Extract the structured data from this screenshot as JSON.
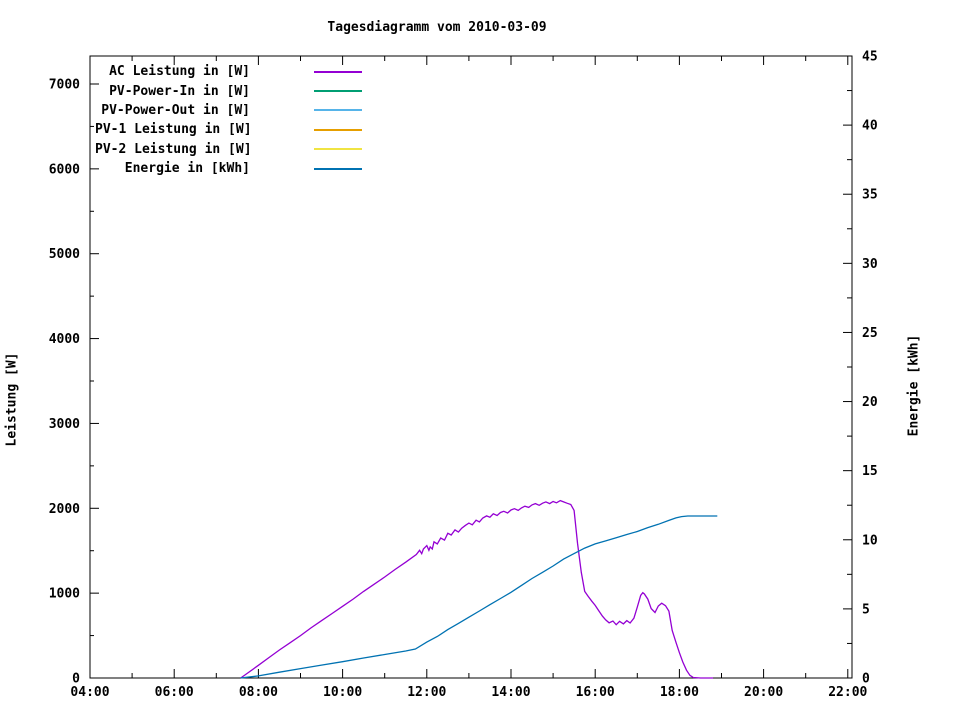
{
  "chart_data": {
    "type": "line",
    "title": "Tagesdiagramm vom 2010-03-09",
    "grid": false,
    "legend_position": "top-left-inside",
    "x_axis": {
      "min": 4,
      "max": 22.1,
      "major_step": 2,
      "minor_step": 1,
      "labels": [
        "04:00",
        "06:00",
        "08:00",
        "10:00",
        "12:00",
        "14:00",
        "16:00",
        "18:00",
        "20:00",
        "22:00"
      ]
    },
    "y_left": {
      "label": "Leistung [W]",
      "min": 0,
      "max": 7000,
      "major_step": 1000,
      "minor_step": 500
    },
    "y_right": {
      "label": "Energie [kWh]",
      "min": 0,
      "max": 45,
      "major_step": 5,
      "minor_step": 2.5
    },
    "series": [
      {
        "name": "AC Leistung in [W]",
        "color": "#9400d3",
        "axis": "left",
        "points": [
          [
            7.58,
            0
          ],
          [
            7.75,
            60
          ],
          [
            8.0,
            150
          ],
          [
            8.25,
            240
          ],
          [
            8.5,
            330
          ],
          [
            8.75,
            415
          ],
          [
            9.0,
            500
          ],
          [
            9.25,
            590
          ],
          [
            9.5,
            675
          ],
          [
            9.75,
            760
          ],
          [
            10.0,
            845
          ],
          [
            10.25,
            930
          ],
          [
            10.5,
            1020
          ],
          [
            10.75,
            1105
          ],
          [
            11.0,
            1190
          ],
          [
            11.25,
            1280
          ],
          [
            11.5,
            1365
          ],
          [
            11.75,
            1455
          ],
          [
            11.83,
            1505
          ],
          [
            11.88,
            1465
          ],
          [
            11.92,
            1520
          ],
          [
            12.0,
            1560
          ],
          [
            12.05,
            1505
          ],
          [
            12.08,
            1545
          ],
          [
            12.13,
            1520
          ],
          [
            12.17,
            1605
          ],
          [
            12.25,
            1580
          ],
          [
            12.33,
            1650
          ],
          [
            12.42,
            1625
          ],
          [
            12.5,
            1705
          ],
          [
            12.58,
            1685
          ],
          [
            12.67,
            1745
          ],
          [
            12.75,
            1720
          ],
          [
            12.83,
            1765
          ],
          [
            12.92,
            1800
          ],
          [
            13.0,
            1825
          ],
          [
            13.08,
            1805
          ],
          [
            13.17,
            1860
          ],
          [
            13.25,
            1840
          ],
          [
            13.33,
            1885
          ],
          [
            13.42,
            1910
          ],
          [
            13.5,
            1895
          ],
          [
            13.58,
            1935
          ],
          [
            13.67,
            1915
          ],
          [
            13.75,
            1950
          ],
          [
            13.83,
            1965
          ],
          [
            13.92,
            1945
          ],
          [
            14.0,
            1980
          ],
          [
            14.08,
            1995
          ],
          [
            14.17,
            1975
          ],
          [
            14.25,
            2005
          ],
          [
            14.33,
            2025
          ],
          [
            14.42,
            2010
          ],
          [
            14.5,
            2040
          ],
          [
            14.58,
            2055
          ],
          [
            14.67,
            2035
          ],
          [
            14.75,
            2060
          ],
          [
            14.83,
            2075
          ],
          [
            14.92,
            2055
          ],
          [
            15.0,
            2080
          ],
          [
            15.08,
            2065
          ],
          [
            15.17,
            2090
          ],
          [
            15.25,
            2075
          ],
          [
            15.33,
            2060
          ],
          [
            15.42,
            2045
          ],
          [
            15.5,
            1975
          ],
          [
            15.58,
            1590
          ],
          [
            15.67,
            1245
          ],
          [
            15.75,
            1020
          ],
          [
            15.83,
            965
          ],
          [
            15.92,
            905
          ],
          [
            16.0,
            855
          ],
          [
            16.08,
            795
          ],
          [
            16.17,
            730
          ],
          [
            16.25,
            685
          ],
          [
            16.33,
            650
          ],
          [
            16.42,
            672
          ],
          [
            16.5,
            628
          ],
          [
            16.58,
            668
          ],
          [
            16.67,
            638
          ],
          [
            16.75,
            676
          ],
          [
            16.83,
            648
          ],
          [
            16.92,
            705
          ],
          [
            17.0,
            835
          ],
          [
            17.08,
            975
          ],
          [
            17.13,
            1005
          ],
          [
            17.17,
            990
          ],
          [
            17.25,
            930
          ],
          [
            17.33,
            818
          ],
          [
            17.42,
            772
          ],
          [
            17.5,
            848
          ],
          [
            17.58,
            882
          ],
          [
            17.67,
            852
          ],
          [
            17.75,
            788
          ],
          [
            17.83,
            560
          ],
          [
            17.92,
            420
          ],
          [
            18.0,
            298
          ],
          [
            18.08,
            188
          ],
          [
            18.17,
            92
          ],
          [
            18.25,
            32
          ],
          [
            18.33,
            6
          ],
          [
            18.5,
            0
          ],
          [
            18.8,
            0
          ]
        ]
      },
      {
        "name": "PV-Power-In in [W]",
        "color": "#009e73",
        "axis": "left",
        "points": []
      },
      {
        "name": "PV-Power-Out in [W]",
        "color": "#56b4e9",
        "axis": "left",
        "points": []
      },
      {
        "name": "PV-1 Leistung in [W]",
        "color": "#e69f00",
        "axis": "left",
        "points": []
      },
      {
        "name": "PV-2 Leistung in [W]",
        "color": "#f0e442",
        "axis": "left",
        "points": []
      },
      {
        "name": "Energie in [kWh]",
        "color": "#0072b2",
        "axis": "right",
        "points": [
          [
            7.58,
            0
          ],
          [
            8.0,
            0.15
          ],
          [
            8.5,
            0.42
          ],
          [
            9.0,
            0.68
          ],
          [
            9.5,
            0.93
          ],
          [
            10.0,
            1.18
          ],
          [
            10.5,
            1.45
          ],
          [
            11.0,
            1.7
          ],
          [
            11.5,
            1.95
          ],
          [
            11.73,
            2.1
          ],
          [
            12.0,
            2.6
          ],
          [
            12.25,
            3.0
          ],
          [
            12.5,
            3.5
          ],
          [
            12.75,
            3.95
          ],
          [
            13.0,
            4.4
          ],
          [
            13.25,
            4.85
          ],
          [
            13.5,
            5.3
          ],
          [
            13.75,
            5.75
          ],
          [
            14.0,
            6.2
          ],
          [
            14.25,
            6.7
          ],
          [
            14.5,
            7.2
          ],
          [
            14.75,
            7.65
          ],
          [
            15.0,
            8.1
          ],
          [
            15.25,
            8.6
          ],
          [
            15.5,
            9.0
          ],
          [
            15.75,
            9.4
          ],
          [
            16.0,
            9.7
          ],
          [
            16.25,
            9.92
          ],
          [
            16.5,
            10.15
          ],
          [
            16.75,
            10.38
          ],
          [
            17.0,
            10.6
          ],
          [
            17.25,
            10.88
          ],
          [
            17.5,
            11.12
          ],
          [
            17.75,
            11.4
          ],
          [
            17.92,
            11.58
          ],
          [
            18.05,
            11.68
          ],
          [
            18.2,
            11.72
          ],
          [
            18.9,
            11.72
          ]
        ]
      }
    ]
  }
}
